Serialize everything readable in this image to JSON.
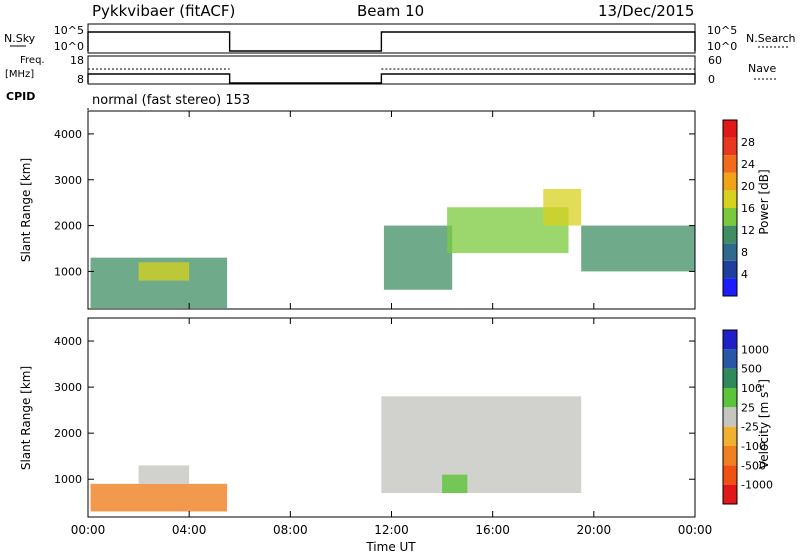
{
  "header": {
    "station": "Pykkvibaer (fitACF)",
    "beam": "Beam 10",
    "date": "13/Dec/2015"
  },
  "labels": {
    "nsky": "N.Sky",
    "nsearch": "N.Search",
    "freq": "Freq.",
    "mhz": "[MHz]",
    "nave": "Nave",
    "cpid": "CPID",
    "cpid_text": "normal (fast stereo) 153",
    "ylabel": "Slant Range [km]",
    "xlabel": "Time UT",
    "power_label": "Power [dB]",
    "velocity_label": "Velocity [m s",
    "velocity_sup": "-1",
    "velocity_close": "]"
  },
  "noise_panel": {
    "left_ticks": [
      "10^5",
      "10^0"
    ],
    "right_ticks": [
      "10^5",
      "10^0"
    ]
  },
  "freq_panel": {
    "left_ticks": [
      "18",
      "8"
    ],
    "right_ticks": [
      "60",
      "0"
    ]
  },
  "x_ticks": [
    "00:00",
    "04:00",
    "08:00",
    "12:00",
    "16:00",
    "20:00",
    "00:00"
  ],
  "y_ticks": [
    "1000",
    "2000",
    "3000",
    "4000"
  ],
  "power_scale": {
    "labels": [
      "4",
      "8",
      "12",
      "16",
      "20",
      "24",
      "28"
    ],
    "colors": [
      "#1c1cff",
      "#1e3f9e",
      "#2f6a8e",
      "#3f8e63",
      "#7ac93c",
      "#d7d21e",
      "#f2a31a",
      "#f26a1a",
      "#e83820",
      "#e01818"
    ]
  },
  "velocity_scale": {
    "labels": [
      "1000",
      "500",
      "100",
      "25",
      "-25",
      "-100",
      "-500",
      "-1000"
    ],
    "colors": [
      "#2020c8",
      "#2a56a8",
      "#2e8a5a",
      "#5cc43a",
      "#c6c6c0",
      "#f0b030",
      "#f08020",
      "#f05010",
      "#e01818"
    ]
  },
  "chart_data": {
    "type": "heatmap",
    "x_range_hours": [
      0,
      24
    ],
    "y_range_km": [
      180,
      4500
    ],
    "noise_on_intervals_hours": [
      [
        0,
        5.6
      ],
      [
        11.6,
        24
      ]
    ],
    "power_echo_regions": [
      {
        "t0": 0.1,
        "t1": 5.5,
        "r0": 200,
        "r1": 1300,
        "level_db": 10
      },
      {
        "t0": 2.0,
        "t1": 4.0,
        "r0": 800,
        "r1": 1200,
        "level_db": 16
      },
      {
        "t0": 11.7,
        "t1": 14.4,
        "r0": 600,
        "r1": 2000,
        "level_db": 8
      },
      {
        "t0": 14.2,
        "t1": 19.0,
        "r0": 1400,
        "r1": 2400,
        "level_db": 12
      },
      {
        "t0": 18.0,
        "t1": 19.5,
        "r0": 2000,
        "r1": 2800,
        "level_db": 14
      },
      {
        "t0": 19.5,
        "t1": 24.0,
        "r0": 1000,
        "r1": 2000,
        "level_db": 8
      }
    ],
    "velocity_echo_regions": [
      {
        "t0": 0.1,
        "t1": 5.5,
        "r0": 300,
        "r1": 900,
        "v": -200
      },
      {
        "t0": 2.0,
        "t1": 4.0,
        "r0": 900,
        "r1": 1300,
        "v": 0
      },
      {
        "t0": 11.6,
        "t1": 19.5,
        "r0": 700,
        "r1": 2800,
        "v": 0
      },
      {
        "t0": 14.0,
        "t1": 15.0,
        "r0": 700,
        "r1": 1100,
        "v": 100
      }
    ]
  }
}
